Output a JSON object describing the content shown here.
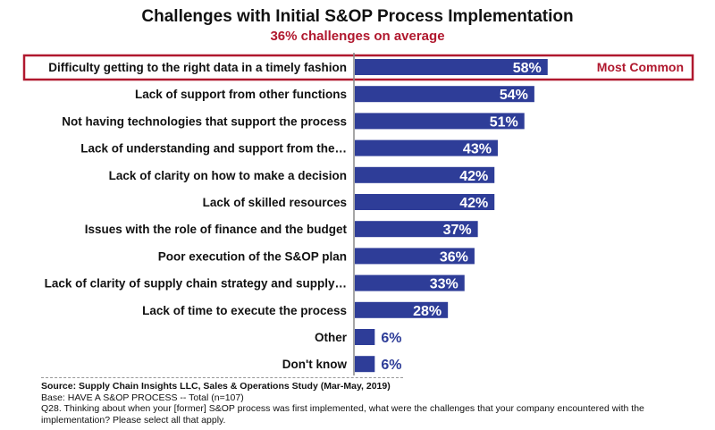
{
  "chart_data": {
    "type": "bar",
    "orientation": "horizontal",
    "title": "Challenges with Initial S&OP Process Implementation",
    "subtitle": "36% challenges on average",
    "categories": [
      "Difficulty getting to the right data in a timely fashion",
      "Lack of support from other functions",
      "Not having technologies that support the process",
      "Lack of understanding and support from the…",
      "Lack of clarity on how to make a decision",
      "Lack of skilled resources",
      "Issues with the role of finance and the budget",
      "Poor execution of the S&OP plan",
      "Lack of clarity of supply chain strategy and supply…",
      "Lack of time to execute the process",
      "Other",
      "Don't know"
    ],
    "values": [
      58,
      54,
      51,
      43,
      42,
      42,
      37,
      36,
      33,
      28,
      6,
      6
    ],
    "value_labels": [
      "58%",
      "54%",
      "51%",
      "43%",
      "42%",
      "42%",
      "37%",
      "36%",
      "33%",
      "28%",
      "6%",
      "6%"
    ],
    "unit": "%",
    "xlim": [
      0,
      100
    ],
    "grid": false,
    "highlight": {
      "index": 0,
      "label": "Most Common"
    },
    "colors": {
      "bar": "#2e3d98",
      "highlight": "#b0182e",
      "small_label": "#2e3d98"
    }
  },
  "footer": {
    "source": "Source:  Supply Chain Insights LLC, Sales & Operations Study (Mar-May, 2019)",
    "base": "Base: HAVE A S&OP PROCESS  -- Total (n=107)",
    "question": "Q28. Thinking about when your [former] S&OP process was first implemented, what were the challenges that your company encountered with the implementation? Please select all that apply."
  }
}
